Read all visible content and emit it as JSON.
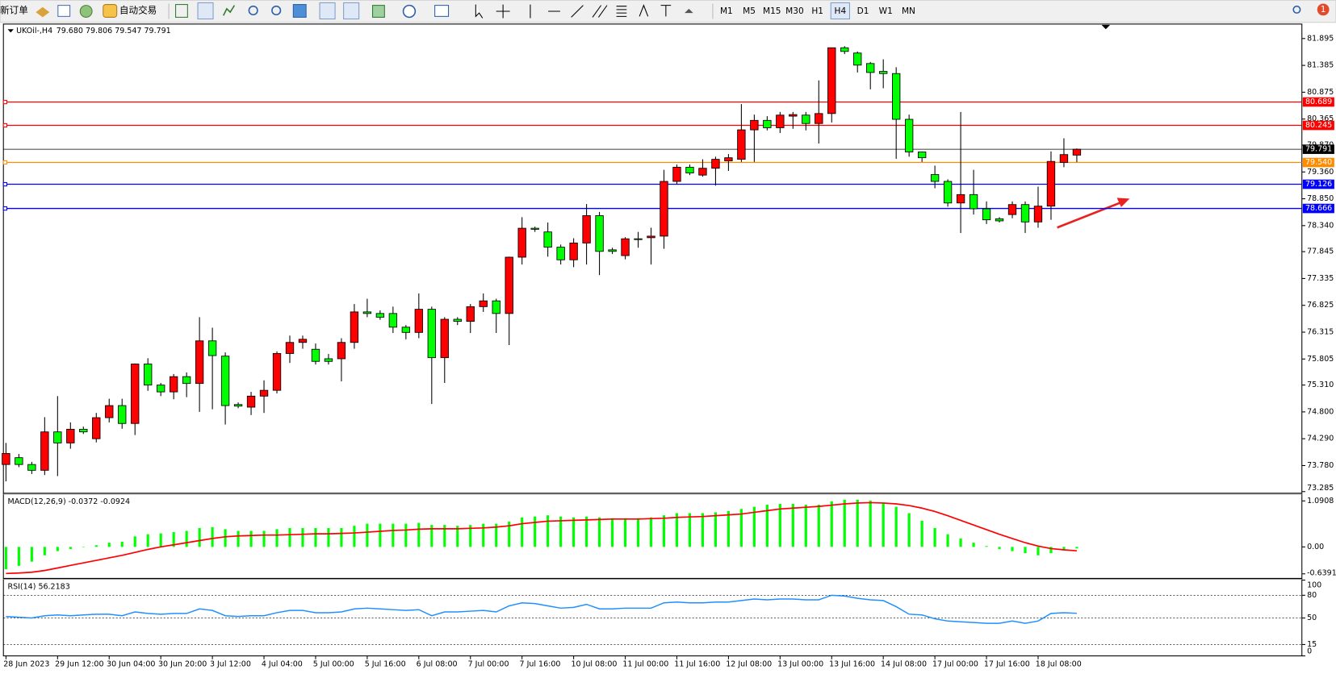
{
  "toolbar": {
    "new_order": "新订单",
    "auto_trading": "自动交易",
    "timeframes": [
      "M1",
      "M5",
      "M15",
      "M30",
      "H1",
      "H4",
      "D1",
      "W1",
      "MN"
    ],
    "alerts": "1"
  },
  "chart_data": [
    {
      "type": "candlestick",
      "title": "UKOil-,H4",
      "ohlc_label": "79.680 79.806 79.547 79.791",
      "categories": [
        "28 Jun 2023",
        null,
        null,
        null,
        "29 Jun 12:00",
        null,
        null,
        null,
        "30 Jun 04:00",
        null,
        null,
        null,
        "30 Jun 20:00",
        null,
        null,
        null,
        "3 Jul 12:00",
        null,
        null,
        null,
        "4 Jul 04:00",
        null,
        null,
        null,
        "5 Jul 00:00",
        null,
        null,
        null,
        "5 Jul 16:00",
        null,
        null,
        null,
        "6 Jul 08:00",
        null,
        null,
        null,
        "7 Jul 00:00",
        null,
        null,
        null,
        "7 Jul 16:00",
        null,
        null,
        null,
        "10 Jul 08:00",
        null,
        null,
        null,
        "11 Jul 00:00",
        null,
        null,
        null,
        "11 Jul 16:00",
        null,
        null,
        null,
        "12 Jul 08:00",
        null,
        null,
        null,
        "13 Jul 00:00",
        null,
        null,
        null,
        "13 Jul 16:00",
        null,
        null,
        null,
        "14 Jul 08:00",
        null,
        null,
        null,
        "17 Jul 00:00",
        null,
        null,
        null,
        "17 Jul 16:00",
        null,
        null,
        null,
        "18 Jul 08:00",
        null,
        null,
        null
      ],
      "open": [
        73.8,
        73.93,
        73.8,
        73.69,
        74.42,
        74.21,
        74.47,
        74.29,
        74.69,
        74.92,
        74.58,
        75.71,
        75.31,
        75.18,
        75.47,
        75.34,
        76.15,
        75.86,
        74.94,
        74.89,
        75.1,
        75.21,
        75.91,
        76.12,
        75.99,
        75.81,
        75.81,
        76.12,
        76.7,
        76.67,
        76.67,
        76.41,
        76.31,
        76.75,
        75.83,
        76.56,
        76.52,
        76.8,
        76.91,
        76.67,
        77.74,
        78.29,
        78.22,
        77.93,
        77.69,
        78.01,
        78.53,
        77.88,
        77.77,
        78.09,
        78.11,
        78.14,
        79.18,
        79.45,
        79.3,
        79.43,
        79.57,
        79.6,
        80.16,
        80.34,
        80.2,
        80.42,
        80.44,
        80.28,
        80.47,
        81.72,
        81.62,
        81.42,
        81.27,
        81.23,
        80.36,
        79.74,
        79.31,
        79.18,
        78.77,
        78.93,
        78.66,
        78.47,
        78.55,
        78.74,
        78.41,
        78.71,
        79.54,
        79.68
      ],
      "high": [
        74.21,
        74.0,
        73.85,
        74.7,
        75.1,
        74.6,
        74.52,
        74.78,
        75.05,
        75.05,
        75.72,
        75.82,
        75.35,
        75.52,
        75.55,
        76.6,
        76.4,
        75.93,
        74.98,
        75.18,
        75.4,
        75.95,
        76.25,
        76.25,
        76.1,
        75.9,
        76.2,
        76.85,
        76.95,
        76.73,
        76.8,
        76.45,
        77.05,
        76.8,
        76.6,
        76.6,
        76.85,
        77.05,
        76.95,
        77.75,
        78.5,
        78.32,
        78.4,
        77.98,
        78.1,
        78.75,
        78.6,
        77.92,
        78.12,
        78.22,
        78.3,
        79.4,
        79.5,
        79.5,
        79.6,
        79.65,
        79.7,
        80.65,
        80.45,
        80.42,
        80.5,
        80.5,
        80.5,
        81.1,
        81.72,
        81.75,
        81.65,
        81.45,
        81.5,
        81.35,
        80.45,
        79.75,
        79.48,
        79.22,
        80.5,
        79.4,
        78.8,
        78.5,
        78.8,
        78.8,
        79.08,
        79.75,
        80.0,
        79.806
      ],
      "low": [
        73.48,
        73.75,
        73.62,
        73.6,
        73.58,
        74.1,
        74.38,
        74.22,
        74.6,
        74.48,
        74.36,
        75.2,
        75.1,
        75.04,
        75.08,
        74.8,
        74.85,
        74.56,
        74.87,
        74.74,
        74.78,
        75.15,
        75.73,
        76.0,
        75.7,
        75.7,
        75.38,
        76.0,
        76.6,
        76.55,
        76.3,
        76.18,
        76.2,
        74.95,
        75.35,
        76.45,
        76.3,
        76.7,
        76.3,
        76.07,
        77.6,
        78.22,
        77.75,
        77.6,
        77.55,
        77.6,
        77.4,
        77.8,
        77.7,
        77.92,
        77.6,
        77.9,
        79.12,
        79.3,
        79.27,
        79.1,
        79.38,
        79.55,
        79.55,
        80.15,
        80.1,
        80.18,
        80.15,
        79.9,
        80.3,
        81.6,
        81.25,
        80.93,
        80.95,
        79.61,
        79.65,
        79.55,
        79.05,
        78.7,
        78.2,
        78.55,
        78.37,
        78.4,
        78.48,
        78.2,
        78.3,
        78.45,
        79.45,
        79.547
      ],
      "close": [
        74.01,
        73.8,
        73.69,
        74.42,
        74.21,
        74.47,
        74.42,
        74.69,
        74.92,
        74.58,
        75.71,
        75.31,
        75.18,
        75.47,
        75.34,
        76.15,
        75.87,
        74.92,
        74.91,
        75.1,
        75.21,
        75.91,
        76.12,
        76.18,
        75.76,
        75.76,
        76.12,
        76.7,
        76.67,
        76.6,
        76.41,
        76.31,
        76.75,
        75.83,
        76.56,
        76.52,
        76.8,
        76.91,
        76.67,
        77.74,
        78.29,
        78.27,
        77.93,
        77.69,
        78.01,
        78.53,
        77.85,
        77.85,
        78.09,
        78.08,
        78.14,
        79.18,
        79.45,
        79.34,
        79.43,
        79.6,
        79.63,
        80.16,
        80.34,
        80.2,
        80.44,
        80.45,
        80.28,
        80.47,
        81.72,
        81.65,
        81.39,
        81.25,
        81.23,
        80.36,
        79.74,
        79.63,
        79.18,
        78.77,
        78.93,
        78.66,
        78.45,
        78.43,
        78.74,
        78.41,
        78.71,
        79.56,
        79.69,
        79.791
      ],
      "up_color": "#ff0000",
      "down_color": "#00ff00",
      "bid_line_color": "#000000",
      "ylim": [
        73.27,
        82.17
      ],
      "yticks": [
        81.895,
        81.385,
        80.875,
        80.365,
        {
          "value": 79.87,
          "label": "79.870"
        },
        {
          "value": 79.36,
          "label": "79.360"
        },
        {
          "value": 78.85,
          "label": "78.850"
        },
        {
          "value": 78.34,
          "label": "78.340"
        },
        77.845,
        77.335,
        76.825,
        76.315,
        75.805,
        {
          "value": 75.31,
          "label": "75.310"
        },
        {
          "value": 74.8,
          "label": "74.800"
        },
        {
          "value": 74.29,
          "label": "74.290"
        },
        {
          "value": 73.78,
          "label": "73.780"
        },
        73.285
      ],
      "hlines": [
        {
          "value": 80.689,
          "color": "#ff0000"
        },
        {
          "value": 80.245,
          "color": "#ff0000"
        },
        {
          "value": {
            "value": 79.54,
            "label": "79.540"
          },
          "color": "#ff8c00"
        },
        {
          "value": 79.126,
          "color": "#0000ff"
        },
        {
          "value": 78.666,
          "color": "#0000ff"
        }
      ]
    },
    {
      "type": "macd",
      "title": "MACD(12,26,9) -0.0372 -0.0924",
      "histogram": {
        "color": "#00ff00",
        "values": [
          -0.53,
          -0.45,
          -0.35,
          -0.2,
          -0.1,
          -0.05,
          0.0,
          0.04,
          0.1,
          0.12,
          0.25,
          0.3,
          0.32,
          0.35,
          0.38,
          0.45,
          0.47,
          0.42,
          0.38,
          0.38,
          0.38,
          0.42,
          0.45,
          0.45,
          0.45,
          0.45,
          0.45,
          0.5,
          0.55,
          0.55,
          0.55,
          0.55,
          0.57,
          0.52,
          0.52,
          0.5,
          0.52,
          0.55,
          0.55,
          0.6,
          0.7,
          0.72,
          0.75,
          0.72,
          0.7,
          0.72,
          0.7,
          0.68,
          0.68,
          0.68,
          0.7,
          0.75,
          0.8,
          0.8,
          0.8,
          0.82,
          0.85,
          0.9,
          0.95,
          1.0,
          1.02,
          1.02,
          1.0,
          1.0,
          1.08,
          1.12,
          1.12,
          1.1,
          1.05,
          0.95,
          0.8,
          0.62,
          0.45,
          0.3,
          0.2,
          0.1,
          0.02,
          -0.05,
          -0.1,
          -0.15,
          -0.2,
          -0.15,
          -0.08,
          -0.0372
        ]
      },
      "signal": {
        "color": "#ff0000",
        "values": [
          -0.63,
          -0.62,
          -0.6,
          -0.56,
          -0.5,
          -0.44,
          -0.38,
          -0.32,
          -0.26,
          -0.2,
          -0.13,
          -0.06,
          0.0,
          0.05,
          0.1,
          0.15,
          0.2,
          0.24,
          0.26,
          0.27,
          0.28,
          0.28,
          0.29,
          0.3,
          0.31,
          0.31,
          0.32,
          0.33,
          0.35,
          0.37,
          0.39,
          0.4,
          0.42,
          0.43,
          0.43,
          0.43,
          0.44,
          0.45,
          0.47,
          0.5,
          0.55,
          0.58,
          0.61,
          0.62,
          0.63,
          0.64,
          0.65,
          0.66,
          0.66,
          0.66,
          0.67,
          0.68,
          0.7,
          0.71,
          0.72,
          0.74,
          0.76,
          0.78,
          0.82,
          0.86,
          0.9,
          0.92,
          0.94,
          0.96,
          0.99,
          1.02,
          1.04,
          1.05,
          1.04,
          1.02,
          0.98,
          0.92,
          0.84,
          0.74,
          0.63,
          0.52,
          0.41,
          0.3,
          0.2,
          0.1,
          0.02,
          -0.04,
          -0.07,
          -0.0924
        ]
      },
      "ylim": [
        -0.727,
        1.232
      ],
      "yticks": [
        1.0908,
        {
          "value": 0,
          "label": "0.00"
        },
        -0.6391
      ]
    },
    {
      "type": "line",
      "title": "RSI(14) 56.2183",
      "color": "#1e90ff",
      "values": [
        52,
        51,
        50,
        53,
        54,
        53,
        54,
        55,
        55,
        53,
        58,
        56,
        55,
        56,
        56,
        62,
        60,
        53,
        52,
        53,
        53,
        57,
        60,
        60,
        57,
        57,
        58,
        62,
        63,
        62,
        61,
        60,
        61,
        53,
        58,
        58,
        59,
        60,
        58,
        66,
        70,
        69,
        66,
        63,
        64,
        68,
        62,
        62,
        63,
        63,
        63,
        70,
        71,
        70,
        70,
        71,
        71,
        73,
        75,
        74,
        75,
        75,
        74,
        74,
        80,
        79,
        76,
        74,
        73,
        65,
        55,
        54,
        49,
        46,
        45,
        44,
        43,
        43,
        46,
        43,
        46,
        56,
        57,
        56.2183
      ],
      "ylim": [
        0,
        100
      ],
      "yticks": [
        100,
        80,
        50,
        15,
        0
      ]
    }
  ]
}
